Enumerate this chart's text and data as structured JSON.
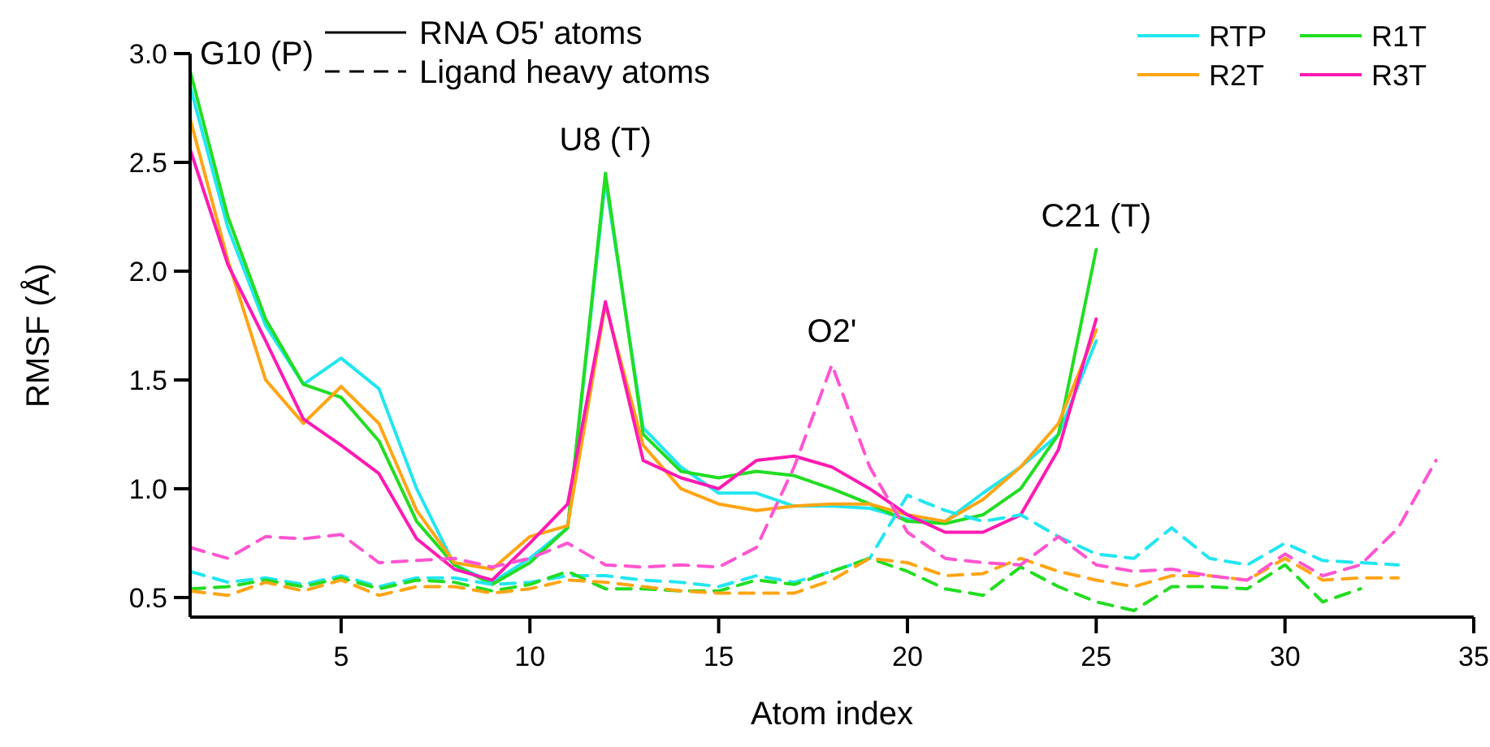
{
  "chart_data": {
    "type": "line",
    "xlabel": "Atom index",
    "ylabel": "RMSF (Å)",
    "xlim": [
      1,
      35
    ],
    "ylim": [
      0.41,
      3.0
    ],
    "xticks": [
      5,
      10,
      15,
      20,
      25,
      30,
      35
    ],
    "yticks": [
      {
        "value": 0.5,
        "label": "0.5"
      },
      {
        "value": 1,
        "label": "1.0"
      },
      {
        "value": 1.5,
        "label": "1.5"
      },
      {
        "value": 2,
        "label": "2.0"
      },
      {
        "value": 2.5,
        "label": "2.5"
      },
      {
        "value": 3,
        "label": "3.0"
      }
    ],
    "grid": false,
    "legend": "top right",
    "marker": "none",
    "annotations": [
      {
        "text": "G10 (P)",
        "x": 1,
        "y": 2.92
      },
      {
        "text": "U8 (T)",
        "x": 12,
        "y": 2.45
      },
      {
        "text": "O2'",
        "x": 18,
        "y": 1.57
      },
      {
        "text": "C21 (T)",
        "x": 25,
        "y": 2.1
      },
      "RNA O5' atoms",
      "Ligand heavy atoms"
    ],
    "series": [
      {
        "name": "RTP",
        "color": "#22e6f0",
        "line_style": "solid",
        "x": [
          1,
          2,
          3,
          4,
          5,
          6,
          7,
          8,
          9,
          10,
          11,
          12,
          13,
          14,
          15,
          16,
          17,
          18,
          19,
          20,
          21,
          22,
          23,
          24,
          25
        ],
        "values": [
          2.85,
          2.2,
          1.75,
          1.48,
          1.6,
          1.46,
          1.0,
          0.65,
          0.57,
          0.68,
          0.82,
          2.42,
          1.28,
          1.1,
          0.98,
          0.98,
          0.92,
          0.92,
          0.91,
          0.86,
          0.85,
          0.98,
          1.1,
          1.25,
          1.68
        ]
      },
      {
        "name": "R1T",
        "color": "#22dd22",
        "line_style": "solid",
        "x": [
          1,
          2,
          3,
          4,
          5,
          6,
          7,
          8,
          9,
          10,
          11,
          12,
          13,
          14,
          15,
          16,
          17,
          18,
          19,
          20,
          21,
          22,
          23,
          24,
          25
        ],
        "values": [
          2.92,
          2.25,
          1.78,
          1.48,
          1.42,
          1.22,
          0.85,
          0.65,
          0.56,
          0.66,
          0.82,
          2.45,
          1.25,
          1.08,
          1.05,
          1.08,
          1.06,
          1.0,
          0.93,
          0.85,
          0.84,
          0.88,
          1.0,
          1.25,
          2.1
        ]
      },
      {
        "name": "R2T",
        "color": "#ffa514",
        "line_style": "solid",
        "x": [
          1,
          2,
          3,
          4,
          5,
          6,
          7,
          8,
          9,
          10,
          11,
          12,
          13,
          14,
          15,
          16,
          17,
          18,
          19,
          20,
          21,
          22,
          23,
          24,
          25
        ],
        "values": [
          2.7,
          2.05,
          1.5,
          1.3,
          1.47,
          1.3,
          0.9,
          0.66,
          0.63,
          0.78,
          0.83,
          1.85,
          1.2,
          1.0,
          0.93,
          0.9,
          0.92,
          0.93,
          0.93,
          0.88,
          0.85,
          0.95,
          1.1,
          1.3,
          1.73
        ]
      },
      {
        "name": "R3T",
        "color": "#ff1ab3",
        "line_style": "solid",
        "x": [
          1,
          2,
          3,
          4,
          5,
          6,
          7,
          8,
          9,
          10,
          11,
          12,
          13,
          14,
          15,
          16,
          17,
          18,
          19,
          20,
          21,
          22,
          23,
          24,
          25
        ],
        "values": [
          2.56,
          2.03,
          1.68,
          1.32,
          1.2,
          1.07,
          0.77,
          0.63,
          0.58,
          0.75,
          0.93,
          1.86,
          1.13,
          1.05,
          1.0,
          1.13,
          1.15,
          1.1,
          1.0,
          0.88,
          0.8,
          0.8,
          0.88,
          1.18,
          1.78
        ]
      },
      {
        "color": "#22e6f0",
        "line_style": "dashed",
        "x": [
          1,
          2,
          3,
          4,
          5,
          6,
          7,
          8,
          9,
          10,
          11,
          12,
          13,
          14,
          15,
          16,
          17,
          18,
          19,
          20,
          21,
          22,
          23,
          24,
          25,
          26,
          27,
          28,
          29,
          30,
          31,
          32,
          33
        ],
        "values": [
          0.62,
          0.57,
          0.59,
          0.56,
          0.6,
          0.55,
          0.59,
          0.59,
          0.56,
          0.57,
          0.6,
          0.6,
          0.58,
          0.57,
          0.55,
          0.6,
          0.57,
          0.62,
          0.68,
          0.97,
          0.9,
          0.85,
          0.88,
          0.78,
          0.7,
          0.68,
          0.82,
          0.68,
          0.65,
          0.75,
          0.67,
          0.66,
          0.65
        ]
      },
      {
        "color": "#22dd22",
        "line_style": "dashed",
        "x": [
          1,
          2,
          3,
          4,
          5,
          6,
          7,
          8,
          9,
          10,
          11,
          12,
          13,
          14,
          15,
          16,
          17,
          18,
          19,
          20,
          21,
          22,
          23,
          24,
          25,
          26,
          27,
          28,
          29,
          30,
          31,
          32
        ],
        "values": [
          0.54,
          0.55,
          0.58,
          0.55,
          0.59,
          0.54,
          0.58,
          0.57,
          0.53,
          0.56,
          0.62,
          0.54,
          0.54,
          0.53,
          0.53,
          0.58,
          0.56,
          0.62,
          0.68,
          0.62,
          0.54,
          0.51,
          0.64,
          0.55,
          0.48,
          0.44,
          0.55,
          0.55,
          0.54,
          0.65,
          0.48,
          0.54
        ]
      },
      {
        "color": "#ffa514",
        "line_style": "dashed",
        "x": [
          1,
          2,
          3,
          4,
          5,
          6,
          7,
          8,
          9,
          10,
          11,
          12,
          13,
          14,
          15,
          16,
          17,
          18,
          19,
          20,
          21,
          22,
          23,
          24,
          25,
          26,
          27,
          28,
          29,
          30,
          31,
          32,
          33
        ],
        "values": [
          0.53,
          0.51,
          0.57,
          0.53,
          0.58,
          0.51,
          0.55,
          0.55,
          0.52,
          0.54,
          0.58,
          0.57,
          0.55,
          0.53,
          0.52,
          0.52,
          0.52,
          0.58,
          0.68,
          0.66,
          0.6,
          0.61,
          0.68,
          0.62,
          0.58,
          0.55,
          0.6,
          0.6,
          0.58,
          0.68,
          0.58,
          0.59,
          0.59
        ]
      },
      {
        "color": "#ff55d0",
        "line_style": "dashed",
        "x": [
          1,
          2,
          3,
          4,
          5,
          6,
          7,
          8,
          9,
          10,
          11,
          12,
          13,
          14,
          15,
          16,
          17,
          18,
          19,
          20,
          21,
          22,
          23,
          24,
          25,
          26,
          27,
          28,
          29,
          30,
          31,
          32,
          33,
          34
        ],
        "values": [
          0.73,
          0.68,
          0.78,
          0.77,
          0.79,
          0.66,
          0.67,
          0.68,
          0.64,
          0.68,
          0.75,
          0.65,
          0.64,
          0.65,
          0.64,
          0.73,
          1.1,
          1.57,
          1.1,
          0.8,
          0.68,
          0.66,
          0.65,
          0.78,
          0.65,
          0.62,
          0.63,
          0.6,
          0.58,
          0.7,
          0.6,
          0.65,
          0.82,
          1.13
        ]
      }
    ]
  }
}
